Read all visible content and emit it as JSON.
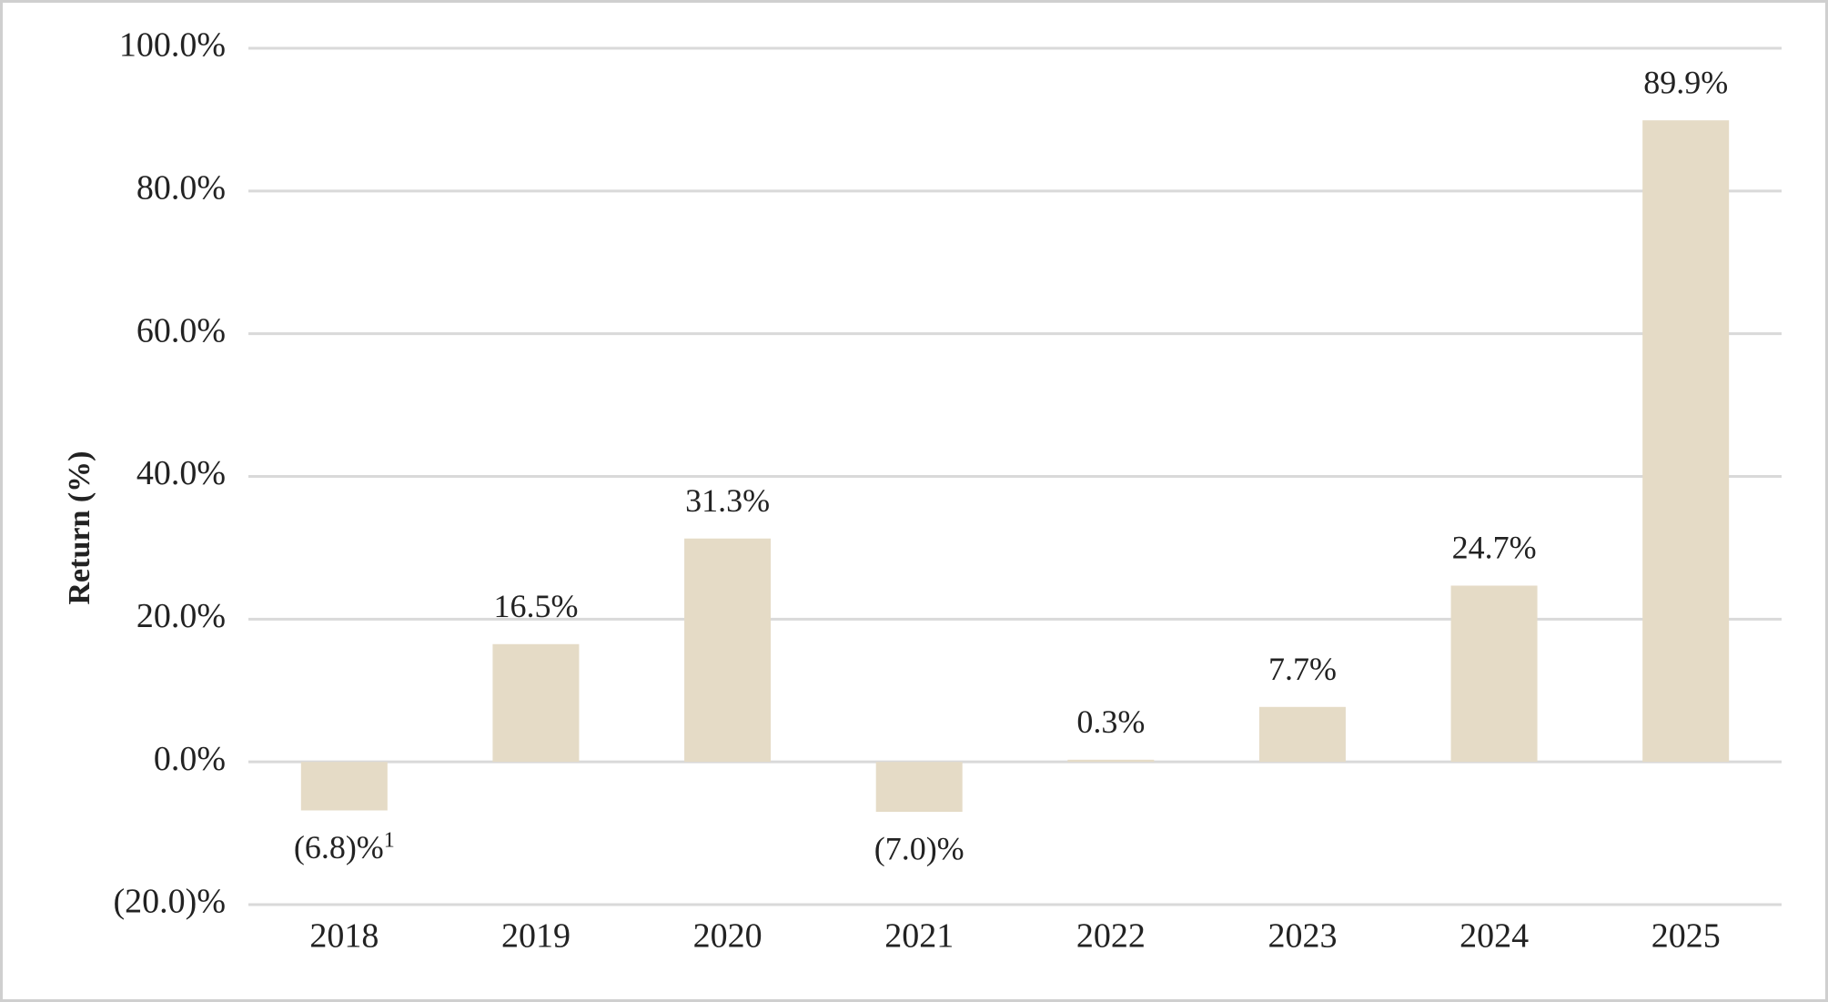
{
  "chart_data": {
    "type": "bar",
    "y_label": "Return (%)",
    "categories": [
      "2018",
      "2019",
      "2020",
      "2021",
      "2022",
      "2023",
      "2024",
      "2025"
    ],
    "values": [
      -6.8,
      16.5,
      31.3,
      -7.0,
      0.3,
      7.7,
      24.7,
      89.9
    ],
    "value_labels": [
      "(6.8)%",
      "16.5%",
      "31.3%",
      "(7.0)%",
      "0.3%",
      "7.7%",
      "24.7%",
      "89.9%"
    ],
    "footnote": "1",
    "color": "#e5dbc6",
    "ylim": [
      -20,
      100
    ],
    "yticks": [
      {
        "value": -20,
        "label": "(20.0)%"
      },
      {
        "value": 0,
        "label": "0.0%"
      },
      {
        "value": 20,
        "label": "20.0%"
      },
      {
        "value": 40,
        "label": "40.0%"
      },
      {
        "value": 60,
        "label": "60.0%"
      },
      {
        "value": 80,
        "label": "80.0%"
      },
      {
        "value": 100,
        "label": "100.0%"
      }
    ],
    "grid": true
  }
}
